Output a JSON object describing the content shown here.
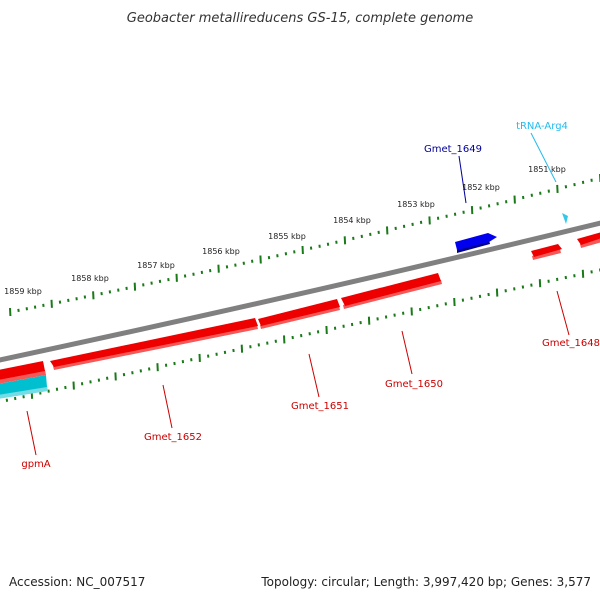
{
  "title": "Geobacter metallireducens GS-15, complete genome",
  "footer": {
    "accession": "Accession: NC_007517",
    "summary": "Topology: circular; Length: 3,997,420 bp; Genes: 3,577"
  },
  "colors": {
    "backbone": "#808080",
    "tick": "#1a7a1a",
    "cds": "#ee0000",
    "cds_highlight": "#0000ee",
    "rna": "#00c0d0",
    "trna": "#33c8e8",
    "label_cds": "#cc0000",
    "label_highlight": "#000099",
    "label_trna": "#22bbee",
    "text": "#222222"
  },
  "kbp_labels": [
    "1859 kbp",
    "1858 kbp",
    "1857 kbp",
    "1856 kbp",
    "1855 kbp",
    "1854 kbp",
    "1853 kbp",
    "1852 kbp",
    "1851 kbp"
  ],
  "genes": [
    {
      "name": "tRNA-Arg4",
      "type": "tRNA"
    },
    {
      "name": "Gmet_1649",
      "type": "CDS-highlight"
    },
    {
      "name": "Gmet_1648",
      "type": "CDS"
    },
    {
      "name": "Gmet_1650",
      "type": "CDS"
    },
    {
      "name": "Gmet_1651",
      "type": "CDS"
    },
    {
      "name": "Gmet_1652",
      "type": "CDS"
    },
    {
      "name": "gpmA",
      "type": "RNA/CDS"
    }
  ]
}
